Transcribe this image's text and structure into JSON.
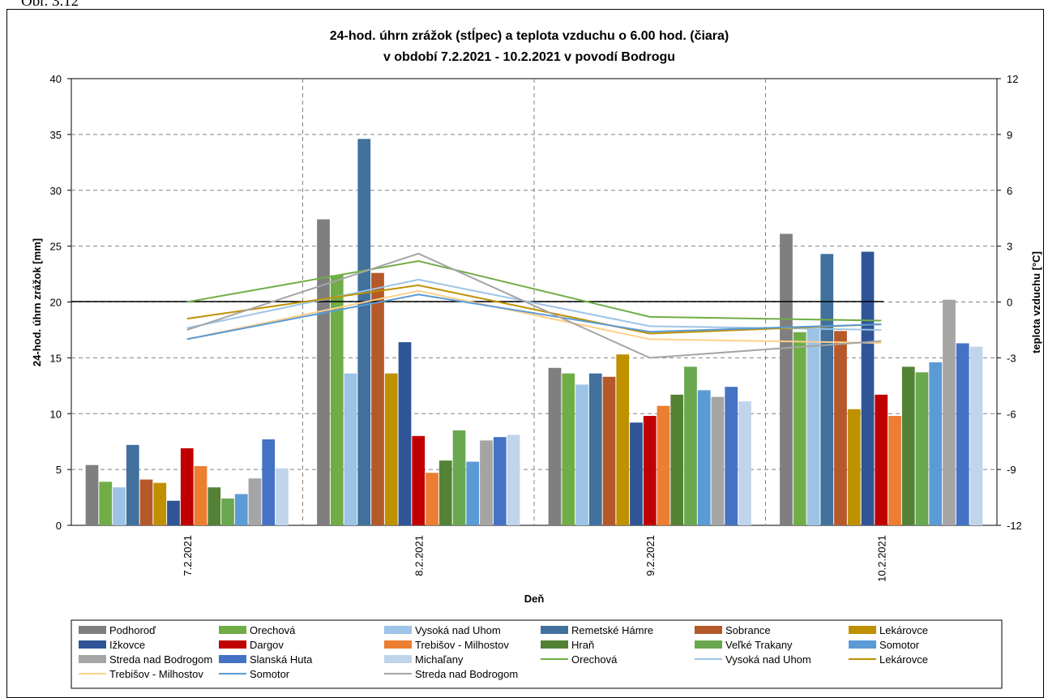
{
  "caption": "Obr. 3.12",
  "chart_data": {
    "type": "bar",
    "title": "24-hod. úhrn zrážok (stĺpec) a teplota vzduchu o 6.00 hod. (čiara)",
    "subtitle": "v období  7.2.2021 - 10.2.2021 v povodí  Bodrogu",
    "xlabel": "Deň",
    "ylabel": "24-hod. úhrn zrážok [mm]",
    "y2label": "teplota vzduchu [°C]",
    "ylim": [
      0,
      40
    ],
    "y2lim": [
      -12,
      12
    ],
    "yticks": [
      "0",
      "5",
      "10",
      "15",
      "20",
      "25",
      "30",
      "35",
      "40"
    ],
    "y2ticks": [
      "-12",
      "-9",
      "-6",
      "-3",
      "0",
      "3",
      "6",
      "9",
      "12"
    ],
    "grid": true,
    "legend_position": "bottom",
    "categories": [
      "7.2.2021",
      "8.2.2021",
      "9.2.2021",
      "10.2.2021"
    ],
    "bar_series": [
      {
        "name": "Podhoroď",
        "color": "#7f7f7f",
        "values": [
          5.4,
          27.4,
          14.1,
          26.1
        ]
      },
      {
        "name": "Orechová",
        "color": "#70ad47",
        "values": [
          3.9,
          22.4,
          13.6,
          17.3
        ]
      },
      {
        "name": "Vysoká nad Uhom",
        "color": "#9dc3e6",
        "values": [
          3.4,
          13.6,
          12.6,
          17.6
        ]
      },
      {
        "name": "Remetské Hámre",
        "color": "#41719c",
        "values": [
          7.2,
          34.6,
          13.6,
          24.3
        ]
      },
      {
        "name": "Sobrance",
        "color": "#b5592a",
        "values": [
          4.1,
          22.6,
          13.3,
          17.4
        ]
      },
      {
        "name": "Lekárovce",
        "color": "#bf9000",
        "values": [
          3.8,
          13.6,
          15.3,
          10.4
        ]
      },
      {
        "name": "Ižkovce",
        "color": "#2f5597",
        "values": [
          2.2,
          16.4,
          9.2,
          24.5
        ]
      },
      {
        "name": "Dargov",
        "color": "#c00000",
        "values": [
          6.9,
          8.0,
          9.8,
          11.7
        ]
      },
      {
        "name": "Trebišov - Milhostov",
        "color": "#ed7d31",
        "values": [
          5.3,
          4.7,
          10.7,
          9.8
        ]
      },
      {
        "name": "Hraň",
        "color": "#548235",
        "values": [
          3.4,
          5.8,
          11.7,
          14.2
        ]
      },
      {
        "name": "Veľké Trakany",
        "color": "#6aa84f",
        "values": [
          2.4,
          8.5,
          14.2,
          13.7
        ]
      },
      {
        "name": "Somotor",
        "color": "#5b9bd5",
        "values": [
          2.8,
          5.7,
          12.1,
          14.6
        ]
      },
      {
        "name": "Streda nad Bodrogom",
        "color": "#a5a5a5",
        "values": [
          4.2,
          7.6,
          11.5,
          20.2
        ]
      },
      {
        "name": "Slanská Huta",
        "color": "#4472c4",
        "values": [
          7.7,
          7.9,
          12.4,
          16.3
        ]
      },
      {
        "name": "Michaľany",
        "color": "#c0d4eb",
        "values": [
          5.1,
          8.1,
          11.1,
          16.0
        ]
      }
    ],
    "line_series": [
      {
        "name": "Orechová",
        "color": "#70ad47",
        "values": [
          0.0,
          2.2,
          -0.8,
          -1.0
        ]
      },
      {
        "name": "Vysoká nad Uhom",
        "color": "#9dc3e6",
        "values": [
          -1.4,
          1.2,
          -1.3,
          -1.5
        ]
      },
      {
        "name": "Lekárovce",
        "color": "#bf9000",
        "values": [
          -0.9,
          0.9,
          -1.7,
          -1.2
        ]
      },
      {
        "name": "Trebišov - Milhostov",
        "color": "#ffd08a",
        "values": [
          -2.0,
          0.6,
          -2.0,
          -2.2
        ]
      },
      {
        "name": "Somotor",
        "color": "#5b9bd5",
        "values": [
          -2.0,
          0.4,
          -1.6,
          -1.2
        ]
      },
      {
        "name": "Streda nad Bodrogom",
        "color": "#a5a5a5",
        "values": [
          -1.5,
          2.6,
          -3.0,
          -2.1
        ]
      }
    ]
  }
}
